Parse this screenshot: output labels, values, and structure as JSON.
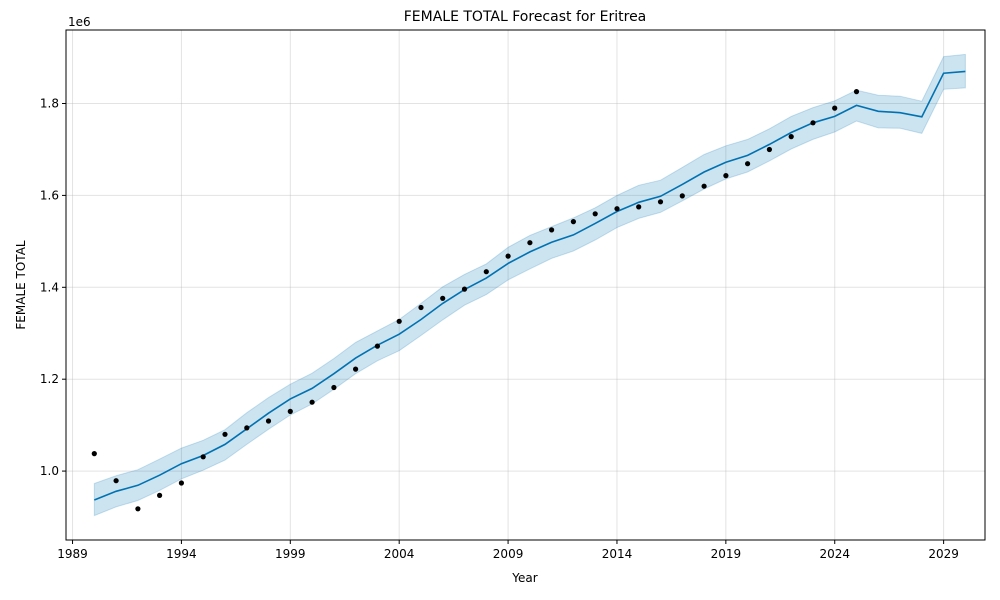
{
  "chart_data": {
    "type": "line",
    "title": "FEMALE TOTAL Forecast for Eritrea",
    "xlabel": "Year",
    "ylabel": "FEMALE TOTAL",
    "y_offset_label": "1e6",
    "xlim": [
      1988.7,
      2030.9
    ],
    "ylim": [
      850000,
      1960000
    ],
    "x_ticks": [
      1989,
      1994,
      1999,
      2004,
      2009,
      2014,
      2019,
      2024,
      2029
    ],
    "x_tick_labels": [
      "1989",
      "1994",
      "1999",
      "2004",
      "2009",
      "2014",
      "2019",
      "2024",
      "2029"
    ],
    "y_ticks": [
      1000000,
      1200000,
      1400000,
      1600000,
      1800000
    ],
    "y_tick_labels": [
      "1.0",
      "1.2",
      "1.4",
      "1.6",
      "1.8"
    ],
    "grid": true,
    "colors": {
      "forecast": "#0072B2",
      "band": "#0072B2",
      "observed": "#000000"
    },
    "observed": {
      "x": [
        1990,
        1991,
        1992,
        1993,
        1994,
        1995,
        1996,
        1997,
        1998,
        1999,
        2000,
        2001,
        2002,
        2003,
        2004,
        2005,
        2006,
        2007,
        2008,
        2009,
        2010,
        2011,
        2012,
        2013,
        2014,
        2015,
        2016,
        2017,
        2018,
        2019,
        2020,
        2021,
        2022,
        2023,
        2024,
        2025
      ],
      "y": [
        1038000,
        979000,
        918000,
        947000,
        974000,
        1031000,
        1080000,
        1094000,
        1109000,
        1130000,
        1150000,
        1182000,
        1222000,
        1272000,
        1326000,
        1356000,
        1376000,
        1396000,
        1434000,
        1468000,
        1497000,
        1525000,
        1543000,
        1560000,
        1571000,
        1575000,
        1586000,
        1599000,
        1620000,
        1643000,
        1669000,
        1700000,
        1728000,
        1758000,
        1790000,
        1826000
      ]
    },
    "forecast": {
      "x": [
        1990,
        1991,
        1992,
        1993,
        1994,
        1995,
        1996,
        1997,
        1998,
        1999,
        2000,
        2001,
        2002,
        2003,
        2004,
        2005,
        2006,
        2007,
        2008,
        2009,
        2010,
        2011,
        2012,
        2013,
        2014,
        2015,
        2016,
        2017,
        2018,
        2019,
        2020,
        2021,
        2022,
        2023,
        2024,
        2025,
        2026,
        2027,
        2028,
        2029,
        2030
      ],
      "yhat": [
        937000,
        956000,
        969000,
        991000,
        1016000,
        1034000,
        1058000,
        1092000,
        1126000,
        1157000,
        1180000,
        1212000,
        1246000,
        1274000,
        1298000,
        1330000,
        1365000,
        1395000,
        1420000,
        1452000,
        1477000,
        1498000,
        1514000,
        1539000,
        1565000,
        1585000,
        1598000,
        1624000,
        1651000,
        1672000,
        1687000,
        1711000,
        1737000,
        1758000,
        1772000,
        1796000,
        1783000,
        1780000,
        1771000,
        1866000,
        1870000
      ],
      "upper": [
        973000,
        990000,
        1003000,
        1026000,
        1050000,
        1067000,
        1090000,
        1127000,
        1160000,
        1189000,
        1213000,
        1245000,
        1280000,
        1305000,
        1330000,
        1365000,
        1401000,
        1428000,
        1451000,
        1487000,
        1513000,
        1532000,
        1551000,
        1573000,
        1600000,
        1622000,
        1633000,
        1661000,
        1689000,
        1708000,
        1722000,
        1745000,
        1772000,
        1791000,
        1806000,
        1829000,
        1818000,
        1816000,
        1805000,
        1902000,
        1907000
      ],
      "lower": [
        903000,
        922000,
        936000,
        958000,
        983000,
        1002000,
        1024000,
        1058000,
        1091000,
        1122000,
        1146000,
        1178000,
        1212000,
        1240000,
        1262000,
        1295000,
        1329000,
        1361000,
        1384000,
        1416000,
        1440000,
        1463000,
        1479000,
        1503000,
        1530000,
        1550000,
        1563000,
        1588000,
        1614000,
        1636000,
        1651000,
        1675000,
        1701000,
        1722000,
        1738000,
        1762000,
        1747000,
        1746000,
        1735000,
        1831000,
        1834000
      ]
    }
  }
}
